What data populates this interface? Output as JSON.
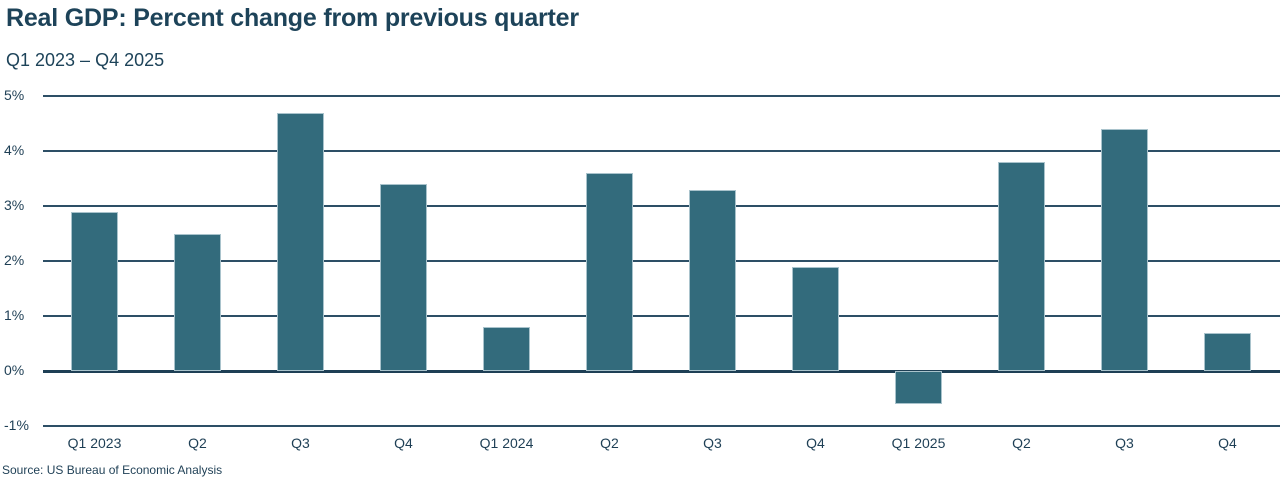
{
  "header": {
    "title": "Real GDP: Percent change from previous quarter",
    "subtitle": "Q1 2023 – Q4 2025"
  },
  "footer": {
    "source": "Source: US Bureau of Economic Analysis"
  },
  "colors": {
    "bar": "#336b7c",
    "gridline": "#2d4f66",
    "text": "#1e3f55"
  },
  "y_axis": {
    "ticks": [
      "5%",
      "4%",
      "3%",
      "2%",
      "1%",
      "0%",
      "-1%"
    ]
  },
  "chart_data": {
    "type": "bar",
    "title": "Real GDP: Percent change from previous quarter",
    "subtitle": "Q1 2023 – Q4 2025",
    "xlabel": "",
    "ylabel": "",
    "categories": [
      "Q1 2023",
      "Q2",
      "Q3",
      "Q4",
      "Q1 2024",
      "Q2",
      "Q3",
      "Q4",
      "Q1 2025",
      "Q2",
      "Q3",
      "Q4"
    ],
    "series": [
      {
        "name": "Real GDP % change from previous quarter",
        "values": [
          2.9,
          2.5,
          4.7,
          3.4,
          0.8,
          3.6,
          3.3,
          1.9,
          -0.6,
          3.8,
          4.4,
          0.7
        ]
      }
    ],
    "ylim": [
      -1,
      5
    ],
    "yticks": [
      -1,
      0,
      1,
      2,
      3,
      4,
      5
    ],
    "ytick_format": "percent",
    "grid": true,
    "legend": null,
    "source": "Source: US Bureau of Economic Analysis"
  }
}
